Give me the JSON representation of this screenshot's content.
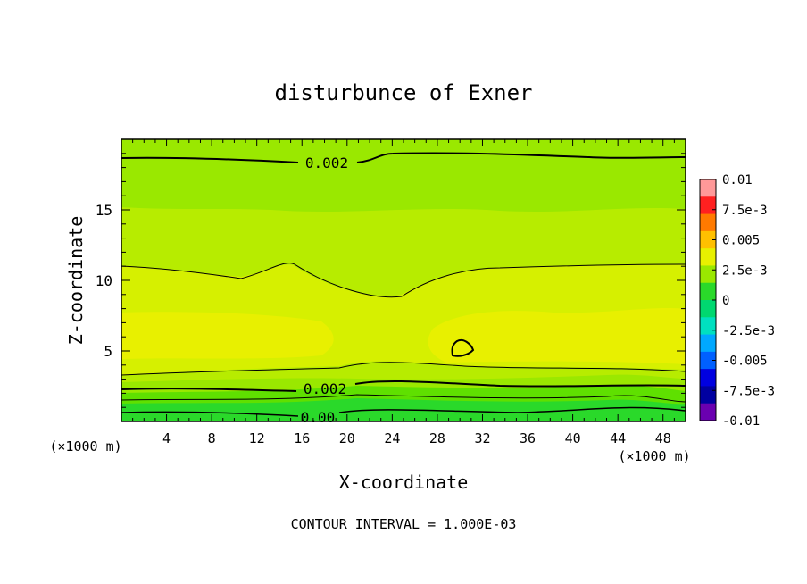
{
  "chart_data": {
    "type": "heatmap",
    "title": "disturbunce of Exner",
    "xlabel": "X-coordinate",
    "ylabel": "Z-coordinate",
    "x_unit": "(×1000 m)",
    "x_unit_right": "(×1000 m)",
    "footer": "CONTOUR INTERVAL = 1.000E-03",
    "xlim": [
      0,
      50
    ],
    "ylim": [
      0,
      20
    ],
    "x_ticks": [
      "4",
      "8",
      "12",
      "16",
      "20",
      "24",
      "28",
      "32",
      "36",
      "40",
      "44",
      "48"
    ],
    "y_ticks": [
      "5",
      "10",
      "15"
    ],
    "contour_labels": [
      "0.002",
      "0.002",
      "0.00"
    ],
    "colorbar": {
      "labels": [
        "0.01",
        "7.5e-3",
        "0.005",
        "2.5e-3",
        "0",
        "-2.5e-3",
        "-0.005",
        "-7.5e-3",
        "-0.01"
      ],
      "colors": [
        "#ff9999",
        "#ff2020",
        "#ff7a00",
        "#ffc000",
        "#e8f000",
        "#9ae800",
        "#2ad92a",
        "#00d870",
        "#00e0c0",
        "#00a8ff",
        "#0060ff",
        "#0000e0",
        "#0000a0",
        "#6a00b0"
      ],
      "range": [
        -0.01,
        0.01
      ]
    },
    "field_levels": [
      {
        "z_range": [
          0,
          1
        ],
        "value": 0.0005
      },
      {
        "z_range": [
          1,
          3
        ],
        "value": 0.0015
      },
      {
        "z_range": [
          3,
          4.5
        ],
        "value": 0.0025
      },
      {
        "z_range": [
          4.5,
          8
        ],
        "value": 0.0032
      },
      {
        "z_range": [
          8,
          11
        ],
        "value": 0.0028
      },
      {
        "z_range": [
          11,
          15
        ],
        "value": 0.0022
      },
      {
        "z_range": [
          15,
          20
        ],
        "value": 0.0018
      }
    ]
  }
}
